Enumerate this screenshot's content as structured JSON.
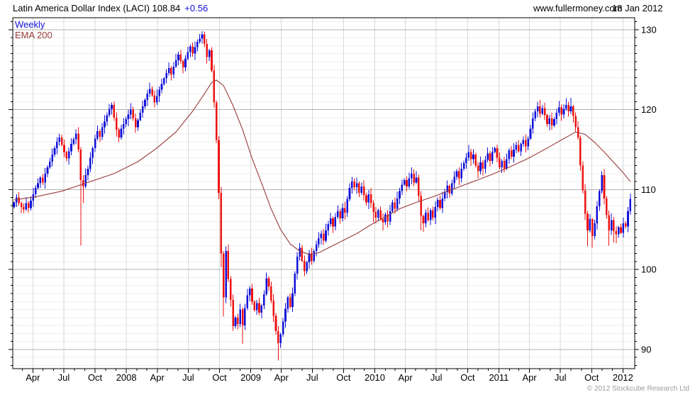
{
  "header": {
    "title": "Latin America Dollar Index (LACI) 108.84",
    "change": "+0.56",
    "site": "www.fullermoney.com",
    "date": "18 Jan 2012"
  },
  "footer": {
    "copyright": "© 2012 Stockcube Research Ltd"
  },
  "colors": {
    "up": "#1010d8",
    "down": "#ee1111",
    "ema": "#9a3b3b",
    "grid_major": "#b3b3b3",
    "grid_minor": "#eeeeee",
    "grid_vertical": "#d9d9d9",
    "border": "#000000",
    "copyright": "#9b9b9b"
  },
  "chart_data": {
    "type": "candlestick",
    "title": "Latin America Dollar Index (LACI)",
    "last_price": 108.84,
    "change": "+0.56",
    "period": "Weekly",
    "x_axis": {
      "start_date": "2007-02-05",
      "weeks": 260,
      "tick_labels": [
        "Apr",
        "Jul",
        "Oct",
        "2008",
        "Apr",
        "Jul",
        "Oct",
        "2009",
        "Apr",
        "Jul",
        "Oct",
        "2010",
        "Apr",
        "Jul",
        "Oct",
        "2011",
        "Apr",
        "Jul",
        "Oct",
        "2012"
      ]
    },
    "y_axis": {
      "min": 87.6,
      "max": 131.5,
      "major_ticks": [
        90,
        100,
        110,
        120,
        130
      ],
      "minor_step": 1,
      "side": "right"
    },
    "series": [
      {
        "name": "Weekly",
        "type": "candlestick",
        "first_open": 107.8,
        "closes": [
          108.4,
          109.0,
          108.3,
          107.8,
          107.5,
          108.3,
          107.7,
          108.6,
          109.4,
          110.2,
          110.8,
          111.5,
          110.9,
          112.0,
          112.8,
          113.5,
          114.4,
          115.2,
          116.0,
          116.5,
          115.6,
          114.7,
          113.9,
          114.8,
          115.7,
          116.3,
          117.0,
          115.0,
          111.2,
          110.4,
          111.8,
          112.6,
          114.0,
          115.2,
          116.4,
          117.3,
          116.6,
          117.8,
          118.5,
          119.3,
          120.1,
          120.6,
          119.0,
          117.5,
          116.5,
          117.6,
          118.2,
          118.8,
          119.4,
          120.0,
          118.9,
          117.8,
          118.7,
          119.6,
          120.4,
          121.2,
          122.0,
          122.6,
          121.8,
          120.9,
          121.7,
          122.5,
          123.2,
          123.9,
          124.6,
          125.2,
          124.4,
          125.4,
          126.2,
          126.9,
          126.1,
          125.3,
          126.4,
          127.2,
          127.9,
          127.0,
          127.8,
          128.5,
          128.9,
          129.4,
          128.2,
          126.6,
          127.4,
          124.9,
          120.9,
          116.2,
          109.6,
          102.0,
          96.5,
          102.3,
          98.8,
          96.2,
          92.9,
          94.0,
          93.2,
          95.0,
          93.0,
          95.2,
          96.8,
          97.6,
          96.0,
          94.9,
          95.8,
          94.6,
          95.5,
          96.9,
          98.9,
          97.9,
          96.1,
          94.2,
          92.3,
          90.8,
          91.9,
          93.5,
          95.1,
          96.5,
          95.3,
          97.0,
          99.5,
          101.6,
          102.7,
          101.1,
          99.8,
          100.9,
          102.0,
          101.1,
          102.3,
          103.1,
          103.9,
          104.5,
          103.6,
          104.9,
          105.7,
          106.4,
          105.4,
          106.6,
          107.3,
          106.4,
          107.7,
          107.1,
          108.8,
          110.2,
          111.0,
          110.3,
          110.8,
          109.6,
          110.4,
          109.3,
          108.4,
          109.4,
          108.3,
          107.2,
          106.5,
          107.4,
          106.3,
          105.9,
          106.9,
          106.0,
          107.3,
          108.4,
          107.6,
          108.9,
          109.8,
          110.6,
          111.2,
          110.4,
          111.4,
          112.0,
          110.9,
          111.5,
          109.2,
          106.7,
          105.8,
          107.1,
          106.2,
          107.4,
          106.5,
          107.8,
          108.7,
          107.7,
          108.9,
          109.7,
          110.5,
          109.5,
          110.8,
          111.6,
          112.3,
          111.4,
          112.6,
          113.3,
          114.0,
          114.7,
          113.8,
          114.4,
          113.0,
          112.3,
          113.4,
          112.6,
          113.7,
          114.5,
          113.6,
          114.7,
          115.2,
          114.0,
          112.8,
          113.6,
          112.6,
          113.8,
          114.9,
          114.1,
          115.0,
          115.6,
          114.8,
          115.7,
          116.2,
          115.4,
          116.4,
          117.6,
          118.9,
          119.8,
          120.4,
          119.5,
          120.2,
          119.3,
          118.2,
          118.9,
          118.0,
          118.8,
          119.6,
          120.3,
          119.4,
          120.1,
          120.6,
          119.8,
          120.4,
          119.2,
          117.8,
          116.5,
          113.0,
          109.9,
          107.0,
          104.9,
          106.3,
          104.2,
          105.8,
          107.9,
          109.8,
          111.8,
          108.9,
          106.8,
          104.9,
          106.2,
          104.8,
          104.4,
          105.3,
          104.6,
          105.8,
          105.4,
          107.3,
          108.84
        ],
        "wick_overrides": {
          "19": {
            "high": 117.0
          },
          "28": {
            "low": 103.0
          },
          "29": {
            "low": 108.3
          },
          "41": {
            "high": 120.9
          },
          "79": {
            "high": 129.8
          },
          "87": {
            "low": 100.3
          },
          "88": {
            "low": 94.1
          },
          "96": {
            "low": 90.7
          },
          "106": {
            "high": 99.6
          },
          "111": {
            "low": 88.6
          },
          "120": {
            "high": 103.3
          },
          "142": {
            "high": 111.6
          },
          "151": {
            "low": 105.9
          },
          "155": {
            "low": 104.9
          },
          "167": {
            "high": 112.8
          },
          "171": {
            "low": 104.9
          },
          "172": {
            "low": 104.7
          },
          "191": {
            "high": 115.6
          },
          "195": {
            "low": 111.4
          },
          "220": {
            "high": 121.0
          },
          "234": {
            "high": 121.5
          },
          "241": {
            "low": 102.9
          },
          "243": {
            "low": 102.7
          },
          "247": {
            "high": 112.3
          },
          "250": {
            "low": 103.0
          },
          "252": {
            "low": 103.4
          },
          "253": {
            "low": 103.3
          },
          "259": {
            "high": 109.5
          }
        }
      },
      {
        "name": "EMA 200",
        "type": "line",
        "points": [
          [
            0,
            108.7
          ],
          [
            9,
            109.1
          ],
          [
            20,
            109.8
          ],
          [
            30,
            110.8
          ],
          [
            42,
            112.0
          ],
          [
            52,
            113.5
          ],
          [
            60,
            115.2
          ],
          [
            68,
            117.2
          ],
          [
            75,
            119.8
          ],
          [
            80,
            122.0
          ],
          [
            83,
            123.4
          ],
          [
            85,
            123.7
          ],
          [
            88,
            123.0
          ],
          [
            92,
            120.5
          ],
          [
            96,
            117.5
          ],
          [
            100,
            113.9
          ],
          [
            104,
            110.8
          ],
          [
            108,
            107.6
          ],
          [
            112,
            105.0
          ],
          [
            116,
            103.2
          ],
          [
            120,
            102.3
          ],
          [
            124,
            101.9
          ],
          [
            128,
            102.1
          ],
          [
            132,
            102.7
          ],
          [
            138,
            103.6
          ],
          [
            144,
            104.5
          ],
          [
            150,
            105.6
          ],
          [
            156,
            106.6
          ],
          [
            162,
            107.6
          ],
          [
            168,
            108.3
          ],
          [
            176,
            109.1
          ],
          [
            184,
            110.0
          ],
          [
            192,
            110.9
          ],
          [
            200,
            111.8
          ],
          [
            208,
            112.8
          ],
          [
            216,
            113.9
          ],
          [
            224,
            115.2
          ],
          [
            230,
            116.2
          ],
          [
            236,
            117.2
          ],
          [
            240,
            116.9
          ],
          [
            244,
            115.9
          ],
          [
            248,
            114.7
          ],
          [
            252,
            113.4
          ],
          [
            256,
            112.1
          ],
          [
            259,
            111.0
          ]
        ]
      }
    ],
    "grid": {
      "horizontal_minor": true,
      "horizontal_major": true,
      "vertical_quarterly": true
    },
    "legend_position": "top-left"
  }
}
